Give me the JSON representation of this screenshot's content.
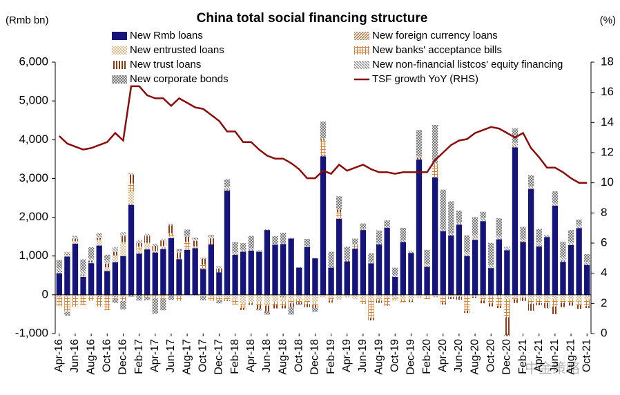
{
  "chart_data": {
    "type": "bar",
    "title": "China total social financing structure",
    "y_label": "(Rmb bn)",
    "y2_label": "(%)",
    "watermark": "中金策略",
    "categories": [
      "Apr-16",
      null,
      "Jun-16",
      null,
      "Aug-16",
      null,
      "Oct-16",
      null,
      "Dec-16",
      null,
      "Feb-17",
      null,
      "Apr-17",
      null,
      "Jun-17",
      null,
      "Aug-17",
      null,
      "Oct-17",
      null,
      "Dec-17",
      null,
      "Feb-18",
      null,
      "Apr-18",
      null,
      "Jun-18",
      null,
      "Aug-18",
      null,
      "Oct-18",
      null,
      "Dec-18",
      null,
      "Feb-19",
      null,
      "Apr-19",
      null,
      "Jun-19",
      null,
      "Aug-19",
      null,
      "Oct-19",
      null,
      "Dec-19",
      null,
      "Feb-20",
      null,
      "Apr-20",
      null,
      "Jun-20",
      null,
      "Aug-20",
      null,
      "Oct-20",
      null,
      "Dec-20",
      null,
      "Feb-21",
      null,
      "Apr-21",
      null,
      "Jun-21",
      null,
      "Aug-21",
      null,
      "Oct-21"
    ],
    "ylim": [
      -1000,
      6000
    ],
    "yticks": [
      {
        "value": -1000,
        "label": "-1,000"
      },
      0,
      {
        "value": 1000,
        "label": "1,000"
      },
      {
        "value": 2000,
        "label": "2,000"
      },
      {
        "value": 3000,
        "label": "3,000"
      },
      {
        "value": 4000,
        "label": "4,000"
      },
      {
        "value": 5000,
        "label": "5,000"
      },
      {
        "value": 6000,
        "label": "6,000"
      }
    ],
    "y2lim": [
      0,
      18
    ],
    "y2ticks": [
      0,
      2,
      4,
      6,
      8,
      10,
      12,
      14,
      16,
      18
    ],
    "series": [
      {
        "name": "New Rmb loans",
        "color": "#14147a",
        "pattern": "solid",
        "values": [
          556,
          986,
          1320,
          464,
          815,
          1270,
          613,
          841,
          999,
          2320,
          1060,
          1170,
          1090,
          1180,
          1460,
          920,
          1160,
          1200,
          660,
          1300,
          580,
          2690,
          1030,
          1110,
          1140,
          1110,
          1670,
          1290,
          1310,
          1450,
          700,
          1230,
          940,
          3570,
          700,
          1960,
          860,
          1190,
          1670,
          810,
          1300,
          1730,
          460,
          1360,
          1080,
          3490,
          720,
          3030,
          1640,
          1530,
          1810,
          1000,
          1420,
          1900,
          690,
          1430,
          1150,
          3800,
          1360,
          2730,
          1250,
          1490,
          2300,
          850,
          1280,
          1720,
          770
        ]
      },
      {
        "name": "New foreign currency loans",
        "color": "#b06a2a",
        "pattern": "hatch",
        "values": [
          -50,
          -40,
          -30,
          -30,
          -40,
          -60,
          0,
          -60,
          -50,
          10,
          30,
          30,
          20,
          10,
          10,
          20,
          0,
          20,
          20,
          0,
          0,
          40,
          40,
          20,
          10,
          -20,
          -40,
          -40,
          -70,
          -10,
          -40,
          -30,
          -30,
          30,
          -10,
          10,
          -10,
          -40,
          20,
          -40,
          -30,
          -10,
          -20,
          -20,
          -10,
          10,
          30,
          10,
          -10,
          -10,
          20,
          -20,
          -20,
          -30,
          10,
          -20,
          -10,
          30,
          30,
          10,
          30,
          -10,
          0,
          20,
          10,
          -20,
          -20
        ]
      },
      {
        "name": "New entrusted loans",
        "color": "#e0b98a",
        "pattern": "dots",
        "values": [
          30,
          40,
          60,
          30,
          20,
          150,
          90,
          170,
          350,
          330,
          60,
          140,
          20,
          70,
          30,
          -30,
          20,
          30,
          -40,
          -30,
          -60,
          -80,
          -130,
          -240,
          -190,
          -160,
          -200,
          -140,
          -120,
          -120,
          -70,
          -130,
          -170,
          -70,
          -70,
          -130,
          -50,
          -70,
          -150,
          -90,
          -70,
          -60,
          -80,
          -100,
          -100,
          -40,
          -40,
          -50,
          -40,
          -40,
          -30,
          -40,
          -30,
          -50,
          -40,
          -40,
          -100,
          -80,
          -50,
          -140,
          -110,
          -110,
          -120,
          -150,
          -130,
          -150,
          -110
        ]
      },
      {
        "name": "New banks' acceptance bills",
        "color": "#e07b2a",
        "pattern": "bricks",
        "values": [
          -250,
          -400,
          -280,
          -240,
          -120,
          -250,
          -400,
          -40,
          -110,
          210,
          90,
          -50,
          -90,
          -100,
          80,
          -130,
          180,
          -20,
          100,
          -130,
          -80,
          -60,
          -120,
          -100,
          -30,
          -90,
          -40,
          -80,
          -90,
          -90,
          -80,
          -80,
          -70,
          380,
          -70,
          160,
          -20,
          100,
          -70,
          -460,
          -50,
          -200,
          -30,
          -60,
          -40,
          -50,
          -70,
          330,
          -150,
          -10,
          -20,
          -350,
          50,
          -70,
          -180,
          -220,
          -470,
          -40,
          -20,
          -90,
          -100,
          -90,
          -180,
          -60,
          -70,
          -100,
          -160
        ]
      },
      {
        "name": "New trust loans",
        "color": "#8b3a14",
        "pattern": "stripes",
        "values": [
          20,
          20,
          60,
          20,
          40,
          40,
          100,
          90,
          160,
          230,
          100,
          170,
          130,
          140,
          210,
          140,
          140,
          140,
          150,
          150,
          90,
          -20,
          0,
          -50,
          -40,
          -90,
          -150,
          -90,
          -70,
          -90,
          -50,
          -80,
          -70,
          30,
          -50,
          70,
          20,
          0,
          -10,
          -70,
          -60,
          -10,
          -10,
          -10,
          -30,
          40,
          0,
          -10,
          -50,
          -50,
          -80,
          -60,
          -30,
          -70,
          -80,
          -60,
          -460,
          -90,
          -90,
          -180,
          -60,
          -130,
          -200,
          -110,
          -80,
          -90,
          -50
        ]
      },
      {
        "name": "New non-financial listcos' equity financing",
        "color": "#8c8c8c",
        "pattern": "diag",
        "values": [
          90,
          60,
          60,
          110,
          60,
          80,
          90,
          130,
          110,
          40,
          70,
          60,
          50,
          30,
          40,
          50,
          30,
          50,
          30,
          50,
          70,
          50,
          30,
          30,
          50,
          40,
          20,
          20,
          10,
          20,
          10,
          10,
          10,
          30,
          10,
          10,
          20,
          20,
          20,
          30,
          40,
          20,
          40,
          40,
          60,
          40,
          40,
          30,
          40,
          60,
          40,
          100,
          80,
          80,
          60,
          100,
          90,
          90,
          60,
          60,
          70,
          60,
          70,
          100,
          80,
          90,
          80
        ]
      },
      {
        "name": "New corporate bonds",
        "color": "#6e6e6e",
        "pattern": "cross",
        "values": [
          200,
          -100,
          20,
          290,
          290,
          40,
          140,
          -110,
          -220,
          -50,
          -150,
          -90,
          -400,
          -300,
          -130,
          50,
          150,
          30,
          -100,
          40,
          -80,
          200,
          260,
          170,
          320,
          -40,
          -80,
          200,
          280,
          -200,
          -30,
          200,
          -100,
          430,
          400,
          330,
          340,
          140,
          130,
          230,
          320,
          170,
          200,
          330,
          -10,
          670,
          370,
          980,
          1030,
          820,
          300,
          430,
          450,
          160,
          580,
          440,
          -30,
          370,
          300,
          280,
          350,
          -10,
          300,
          400,
          300,
          130,
          200
        ]
      },
      {
        "name": "TSF growth YoY (RHS)",
        "color": "#8b0a0a",
        "type": "line",
        "axis": "y2",
        "values": [
          13.1,
          12.6,
          12.4,
          12.2,
          12.3,
          12.5,
          12.7,
          13.3,
          12.8,
          16.4,
          16.4,
          15.8,
          15.6,
          15.6,
          15.1,
          15.6,
          15.3,
          15.0,
          14.9,
          14.5,
          14.1,
          13.4,
          13.4,
          12.7,
          12.7,
          12.2,
          11.8,
          11.6,
          11.6,
          11.3,
          10.9,
          10.3,
          10.3,
          10.8,
          10.6,
          11.2,
          10.8,
          11.0,
          11.2,
          10.9,
          10.7,
          10.7,
          10.6,
          10.7,
          10.7,
          10.7,
          10.7,
          11.5,
          12.0,
          12.5,
          12.8,
          12.9,
          13.3,
          13.5,
          13.7,
          13.6,
          13.3,
          13.0,
          13.3,
          12.3,
          11.7,
          11.0,
          11.0,
          10.7,
          10.3,
          10.0,
          10.0
        ]
      }
    ]
  }
}
